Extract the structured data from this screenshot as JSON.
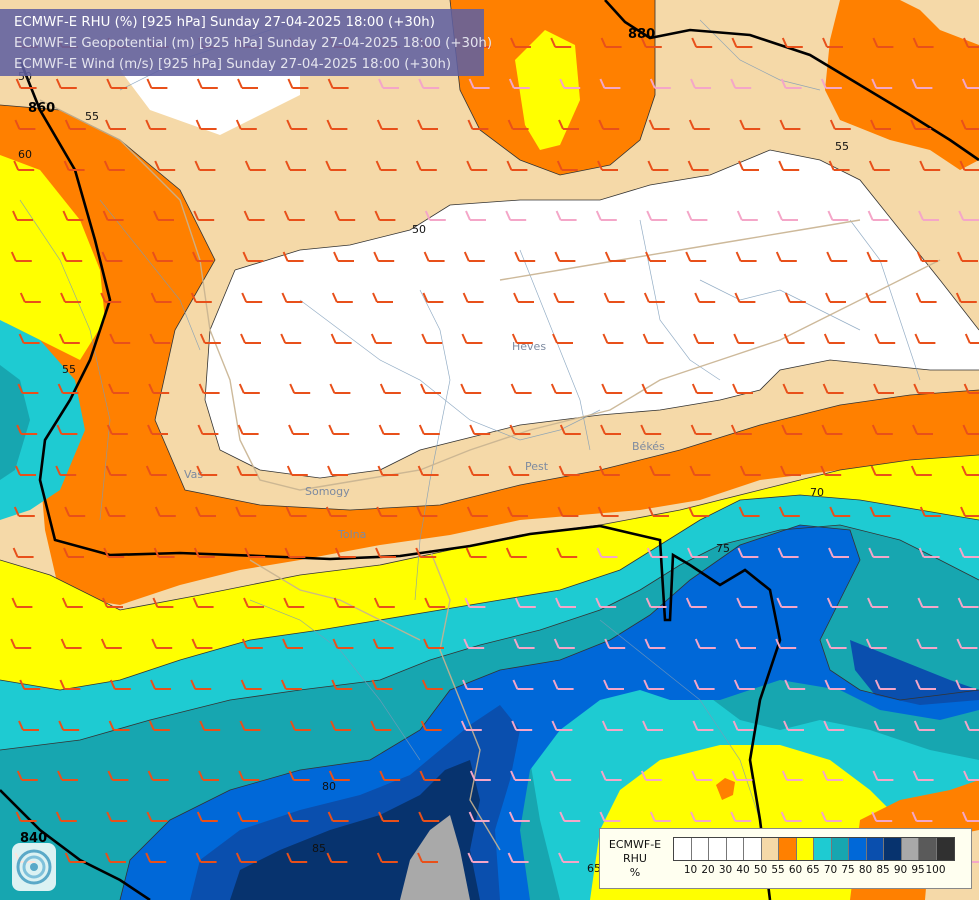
{
  "title": {
    "line1": "ECMWF-E RHU (%) [925 hPa] Sunday 27-04-2025 18:00 (+30h)",
    "line2": "ECMWF-E Geopotential (m) [925 hPa] Sunday 27-04-2025 18:00 (+30h)",
    "line3": "ECMWF-E Wind (m/s) [925 hPa] Sunday 27-04-2025 18:00 (+30h)"
  },
  "legend": {
    "source": "ECMWF-E",
    "variable": "RHU",
    "unit": "%",
    "levels": [
      "10",
      "20",
      "30",
      "40",
      "50",
      "55",
      "60",
      "65",
      "70",
      "75",
      "80",
      "85",
      "90",
      "95",
      "100"
    ],
    "colors": [
      "#ffffff",
      "#ffffff",
      "#ffffff",
      "#ffffff",
      "#ffffff",
      "#f5d9a8",
      "#ff8000",
      "#ffff00",
      "#1ecbd2",
      "#17a6b0",
      "#0068d8",
      "#0a4fae",
      "#07336e",
      "#a9a9a9",
      "#5a5a5a",
      "#303030"
    ]
  },
  "rhu_contour_labels": [
    "50",
    "55",
    "55",
    "55",
    "60",
    "65",
    "70",
    "75",
    "80",
    "85"
  ],
  "geopotential_labels": [
    "880",
    "860",
    "840"
  ],
  "place_labels": [
    "Vas",
    "Somogy",
    "Tolna",
    "Pest",
    "Békés",
    "Heves"
  ],
  "logo": "ecmwf-swirl-icon"
}
